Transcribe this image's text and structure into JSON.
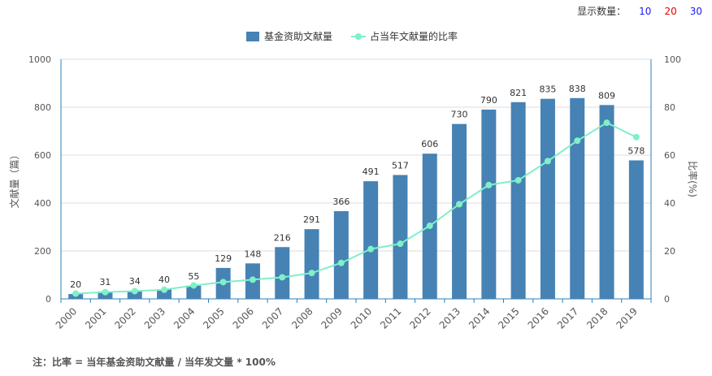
{
  "controls": {
    "label": "显示数量：",
    "options": [
      {
        "label": "10",
        "color": "#1a1aff"
      },
      {
        "label": "20",
        "color": "#e60000"
      },
      {
        "label": "30",
        "color": "#1a1aff"
      }
    ]
  },
  "note": "注：比率 = 当年基金资助文献量 / 当年发文量 * 100%",
  "chart_data": {
    "type": "bar",
    "categories": [
      "2000",
      "2001",
      "2002",
      "2003",
      "2004",
      "2005",
      "2006",
      "2007",
      "2008",
      "2009",
      "2010",
      "2011",
      "2012",
      "2013",
      "2014",
      "2015",
      "2016",
      "2017",
      "2018",
      "2019"
    ],
    "series": [
      {
        "name": "基金资助文献量",
        "type": "bar",
        "axis": "left",
        "color": "#4682b4",
        "values": [
          20,
          31,
          34,
          40,
          55,
          129,
          148,
          216,
          291,
          366,
          491,
          517,
          606,
          730,
          790,
          821,
          835,
          838,
          809,
          578
        ]
      },
      {
        "name": "占当年文献量的比率",
        "type": "line",
        "axis": "right",
        "color": "#7ff0c8",
        "values": [
          2.2,
          2.8,
          3.2,
          3.8,
          5.6,
          7.0,
          8.0,
          9.0,
          10.8,
          15.0,
          20.8,
          23.0,
          30.5,
          39.5,
          47.5,
          49.5,
          57.5,
          66.0,
          73.5,
          67.5
        ]
      }
    ],
    "ylabel_left": "文献量（篇）",
    "ylabel_right": "比率(%)",
    "ylim_left": [
      0,
      1000
    ],
    "ylim_right": [
      0,
      100
    ],
    "yticks_left": [
      "0",
      "200",
      "400",
      "600",
      "800",
      "1000"
    ],
    "yticks_right": [
      "0",
      "20",
      "40",
      "60",
      "80",
      "100"
    ],
    "legend_position": "top-center",
    "grid": true
  }
}
